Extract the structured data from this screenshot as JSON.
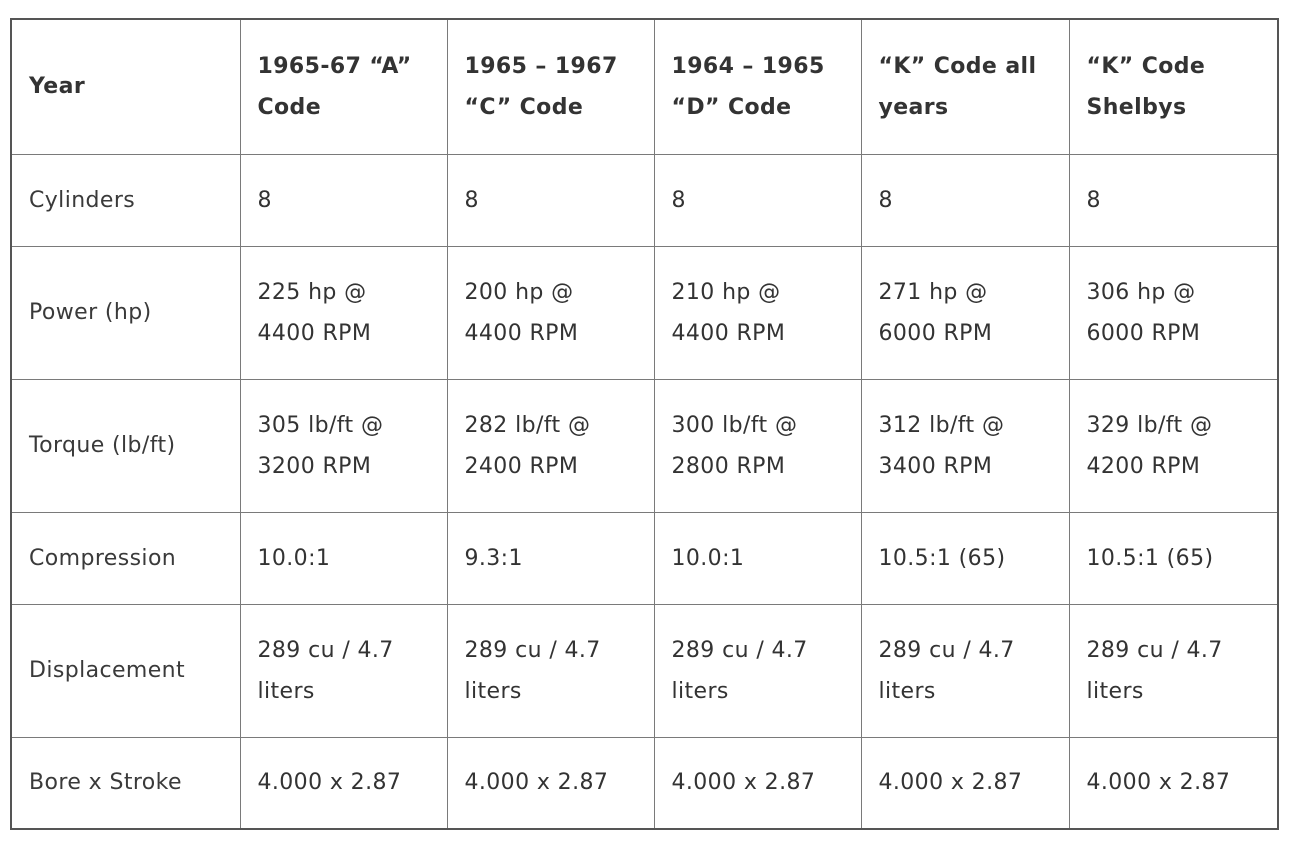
{
  "table": {
    "headers": [
      "Year",
      "1965-67 “A” Code",
      "1965 – 1967 “C” Code",
      "1964 – 1965 “D” Code",
      "“K” Code all years",
      "“K” Code Shelbys"
    ],
    "rows": [
      {
        "label": "Cylinders",
        "cells": [
          "8",
          "8",
          "8",
          "8",
          "8"
        ]
      },
      {
        "label": "Power (hp)",
        "cells": [
          "225 hp @ 4400 RPM",
          "200 hp @ 4400 RPM",
          "210 hp @ 4400 RPM",
          "271 hp @ 6000 RPM",
          "306 hp @ 6000 RPM"
        ]
      },
      {
        "label": "Torque (lb/ft)",
        "cells": [
          "305 lb/ft @ 3200 RPM",
          "282 lb/ft @ 2400 RPM",
          "300 lb/ft @ 2800 RPM",
          "312 lb/ft @ 3400 RPM",
          "329 lb/ft @ 4200 RPM"
        ]
      },
      {
        "label": "Compression",
        "cells": [
          "10.0:1",
          "9.3:1",
          "10.0:1",
          "10.5:1 (65)",
          "10.5:1 (65)"
        ]
      },
      {
        "label": "Displacement",
        "cells": [
          "289 cu / 4.7 liters",
          "289 cu / 4.7 liters",
          "289 cu / 4.7 liters",
          "289 cu / 4.7 liters",
          "289 cu / 4.7 liters"
        ]
      },
      {
        "label": "Bore x Stroke",
        "cells": [
          "4.000 x 2.87",
          "4.000 x 2.87",
          "4.000 x 2.87",
          "4.000 x 2.87",
          "4.000 x 2.87"
        ]
      }
    ]
  }
}
